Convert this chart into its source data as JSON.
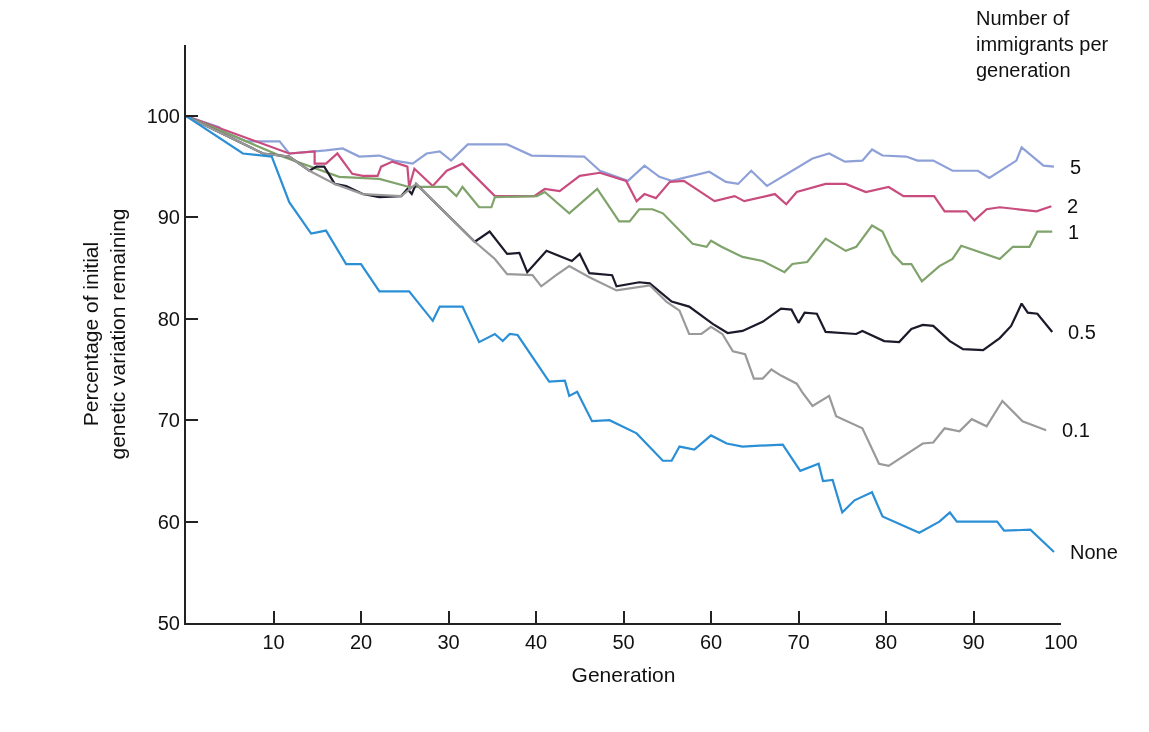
{
  "chart_data": {
    "type": "line",
    "xlabel": "Generation",
    "ylabel": "Percentage of initial genetic variation remaining",
    "legend_title": "Number of immigrants per generation",
    "xlim": [
      0,
      100
    ],
    "xticks": [
      10,
      20,
      30,
      40,
      50,
      60,
      70,
      80,
      90,
      100
    ],
    "ylim": [
      50,
      107
    ],
    "yticks": [
      50,
      60,
      70,
      80,
      90,
      100
    ],
    "legend": false,
    "marker": "none",
    "line_style": "solid",
    "series": [
      {
        "name": "5",
        "color": "#8ea0d8",
        "x": [
          0,
          3.8,
          4.4,
          6.9,
          10.7,
          11.8,
          16,
          17.9,
          19.8,
          22.1,
          23.8,
          25.9,
          27.5,
          29,
          30.3,
          32.2,
          36.7,
          39.5,
          45.5,
          47.3,
          50.5,
          52.4,
          54.1,
          55.5,
          59.8,
          61.7,
          63.1,
          64.6,
          66.4,
          71.6,
          73.5,
          75.3,
          77.3,
          78.4,
          79.6,
          82.3,
          83.6,
          85.4,
          87.6,
          90.5,
          91.8,
          94.9,
          95.5,
          98,
          99.2
        ],
        "values": [
          100,
          98.9,
          98.4,
          97.5,
          97.5,
          96.3,
          96.6,
          96.8,
          96,
          96.1,
          95.6,
          95.3,
          96.3,
          96.5,
          95.6,
          97.2,
          97.2,
          96.1,
          96,
          94.6,
          93.6,
          95.1,
          94,
          93.6,
          94.5,
          93.5,
          93.3,
          94.6,
          93.1,
          95.8,
          96.3,
          95.5,
          95.6,
          96.7,
          96.1,
          96,
          95.6,
          95.6,
          94.6,
          94.6,
          93.9,
          95.6,
          96.9,
          95.1,
          95
        ]
      },
      {
        "name": "2",
        "color": "#c84d7e",
        "x": [
          0,
          11.8,
          14.7,
          14.7,
          16,
          17.3,
          19,
          20.2,
          21.9,
          22.3,
          23.6,
          25.3,
          25.5,
          26.1,
          28.2,
          29.8,
          31.6,
          35.3,
          39.8,
          41,
          42.7,
          45,
          47.3,
          50.3,
          51.5,
          52.4,
          53.7,
          55.3,
          56.9,
          60.4,
          62.7,
          63.8,
          67.3,
          68.6,
          69.8,
          73.1,
          75.4,
          77.7,
          80.3,
          82,
          85.5,
          86.7,
          89.2,
          90.1,
          91.5,
          93,
          97.2,
          98.9
        ],
        "values": [
          100,
          96.3,
          96.5,
          95.3,
          95.3,
          96.3,
          94.3,
          94.1,
          94.1,
          95,
          95.5,
          95,
          93,
          94.8,
          93.1,
          94.6,
          95.3,
          92.1,
          92.1,
          92.8,
          92.6,
          94.1,
          94.4,
          93.6,
          91.6,
          92.3,
          91.9,
          93.5,
          93.6,
          91.6,
          92.1,
          91.6,
          92.3,
          91.3,
          92.5,
          93.3,
          93.3,
          92.5,
          93,
          92.1,
          92.1,
          90.6,
          90.6,
          89.7,
          90.8,
          91,
          90.6,
          91.1
        ]
      },
      {
        "name": "1",
        "color": "#7fa36a",
        "x": [
          0,
          10.7,
          17.5,
          22.1,
          25.5,
          29.8,
          30.9,
          31.6,
          33.5,
          34.9,
          35.3,
          40.1,
          41,
          43.8,
          47,
          49.5,
          50.7,
          51.8,
          53.3,
          54.5,
          57.9,
          59.5,
          60,
          61.2,
          63.6,
          65.9,
          68.4,
          69.3,
          71,
          73.1,
          75.4,
          76.6,
          78.4,
          79.6,
          80.8,
          81.9,
          82.9,
          84.1,
          86.1,
          87.6,
          88.6,
          93,
          94.5,
          96.4,
          97.3,
          99
        ],
        "values": [
          100,
          96.1,
          94,
          93.8,
          93,
          93,
          92.1,
          93,
          91,
          91,
          92,
          92.1,
          92.5,
          90.4,
          92.8,
          89.6,
          89.6,
          90.8,
          90.8,
          90.4,
          87.4,
          87.1,
          87.7,
          87.1,
          86.1,
          85.7,
          84.6,
          85.4,
          85.6,
          87.9,
          86.7,
          87.1,
          89.2,
          88.6,
          86.4,
          85.4,
          85.4,
          83.7,
          85.2,
          85.9,
          87.2,
          85.9,
          87.1,
          87.1,
          88.6,
          88.6
        ]
      },
      {
        "name": "0.5",
        "color": "#1a1a2a",
        "x": [
          0,
          8.8,
          11.8,
          14.1,
          14.9,
          15.8,
          17,
          18.3,
          20.2,
          22.1,
          24.6,
          25.3,
          25.8,
          26.3,
          33,
          34.7,
          36.7,
          38.1,
          39,
          41.2,
          44.1,
          45,
          46.1,
          48.7,
          49.2,
          51.8,
          53,
          55.5,
          57.5,
          60.2,
          61.9,
          63.6,
          65.9,
          68,
          69.2,
          70,
          70.7,
          72.1,
          73.1,
          76.6,
          77.3,
          79.8,
          81.5,
          82.9,
          84.2,
          85.4,
          87.3,
          88.8,
          91.1,
          93,
          94.3,
          95.5,
          96.2,
          97.3,
          99
        ],
        "values": [
          100,
          96.3,
          96,
          94.6,
          95,
          95,
          93.3,
          93.1,
          92.3,
          92,
          92.1,
          92.8,
          92.3,
          93.3,
          87.6,
          88.6,
          86.4,
          86.5,
          84.6,
          86.7,
          85.7,
          86.4,
          84.5,
          84.3,
          83.2,
          83.6,
          83.5,
          81.7,
          81.2,
          79.5,
          78.6,
          78.8,
          79.7,
          81,
          80.9,
          79.6,
          80.6,
          80.5,
          78.7,
          78.5,
          78.8,
          77.8,
          77.7,
          79,
          79.4,
          79.3,
          77.8,
          77,
          76.9,
          78.1,
          79.3,
          81.5,
          80.6,
          80.5,
          78.7
        ]
      },
      {
        "name": "0.1",
        "color": "#9a9a9a",
        "x": [
          0,
          8.8,
          11.8,
          14.1,
          17,
          20.2,
          24.6,
          26.3,
          33,
          35.3,
          36.7,
          39.6,
          40.6,
          42.3,
          43.8,
          46.1,
          49.2,
          53,
          54.9,
          56.4,
          57.5,
          58.9,
          60,
          61.3,
          62.5,
          63.9,
          64.9,
          65.9,
          66.9,
          68,
          69.8,
          70.4,
          71.6,
          73.5,
          74.3,
          77.3,
          79.2,
          80.3,
          84.2,
          85.4,
          86.7,
          88.4,
          89.8,
          91.5,
          93.3,
          95.6,
          98.3
        ],
        "values": [
          100,
          96.3,
          96,
          94.6,
          93.3,
          92.3,
          92.1,
          93.3,
          87.6,
          85.9,
          84.4,
          84.3,
          83.2,
          84.3,
          85.2,
          84.1,
          82.8,
          83.3,
          81.7,
          80.8,
          78.5,
          78.5,
          79.2,
          78.5,
          76.8,
          76.5,
          74.1,
          74.1,
          75,
          74.4,
          73.6,
          72.8,
          71.4,
          72.4,
          70.4,
          69.2,
          65.7,
          65.5,
          67.7,
          67.8,
          69.2,
          68.9,
          70.1,
          69.4,
          71.9,
          69.9,
          69
        ]
      },
      {
        "name": "None",
        "color": "#2b8fd6",
        "x": [
          0,
          6.5,
          9.8,
          11.8,
          14.3,
          16,
          18.3,
          20,
          22.1,
          25.5,
          28.2,
          29,
          31.6,
          33.5,
          35.3,
          36.2,
          37,
          37.9,
          41.5,
          43.3,
          43.8,
          44.7,
          46.4,
          48.4,
          51.5,
          54.5,
          55.5,
          56.4,
          58.1,
          60,
          61.8,
          63.6,
          68.2,
          70.2,
          72.3,
          72.8,
          73.9,
          75,
          76.4,
          78.4,
          79.6,
          83.8,
          86.1,
          87.3,
          88.1,
          92.7,
          93.5,
          96.5,
          99.2
        ],
        "values": [
          100,
          96.3,
          96,
          91.5,
          88.4,
          88.7,
          85.4,
          85.4,
          82.7,
          82.7,
          79.8,
          81.2,
          81.2,
          77.7,
          78.5,
          77.8,
          78.5,
          78.4,
          73.8,
          73.9,
          72.4,
          72.8,
          69.9,
          70,
          68.7,
          66,
          66,
          67.4,
          67.1,
          68.5,
          67.7,
          67.4,
          67.6,
          65,
          65.7,
          64,
          64.1,
          60.9,
          62.1,
          62.9,
          60.5,
          58.9,
          60,
          60.9,
          60,
          60,
          59.1,
          59.2,
          57
        ]
      }
    ]
  }
}
